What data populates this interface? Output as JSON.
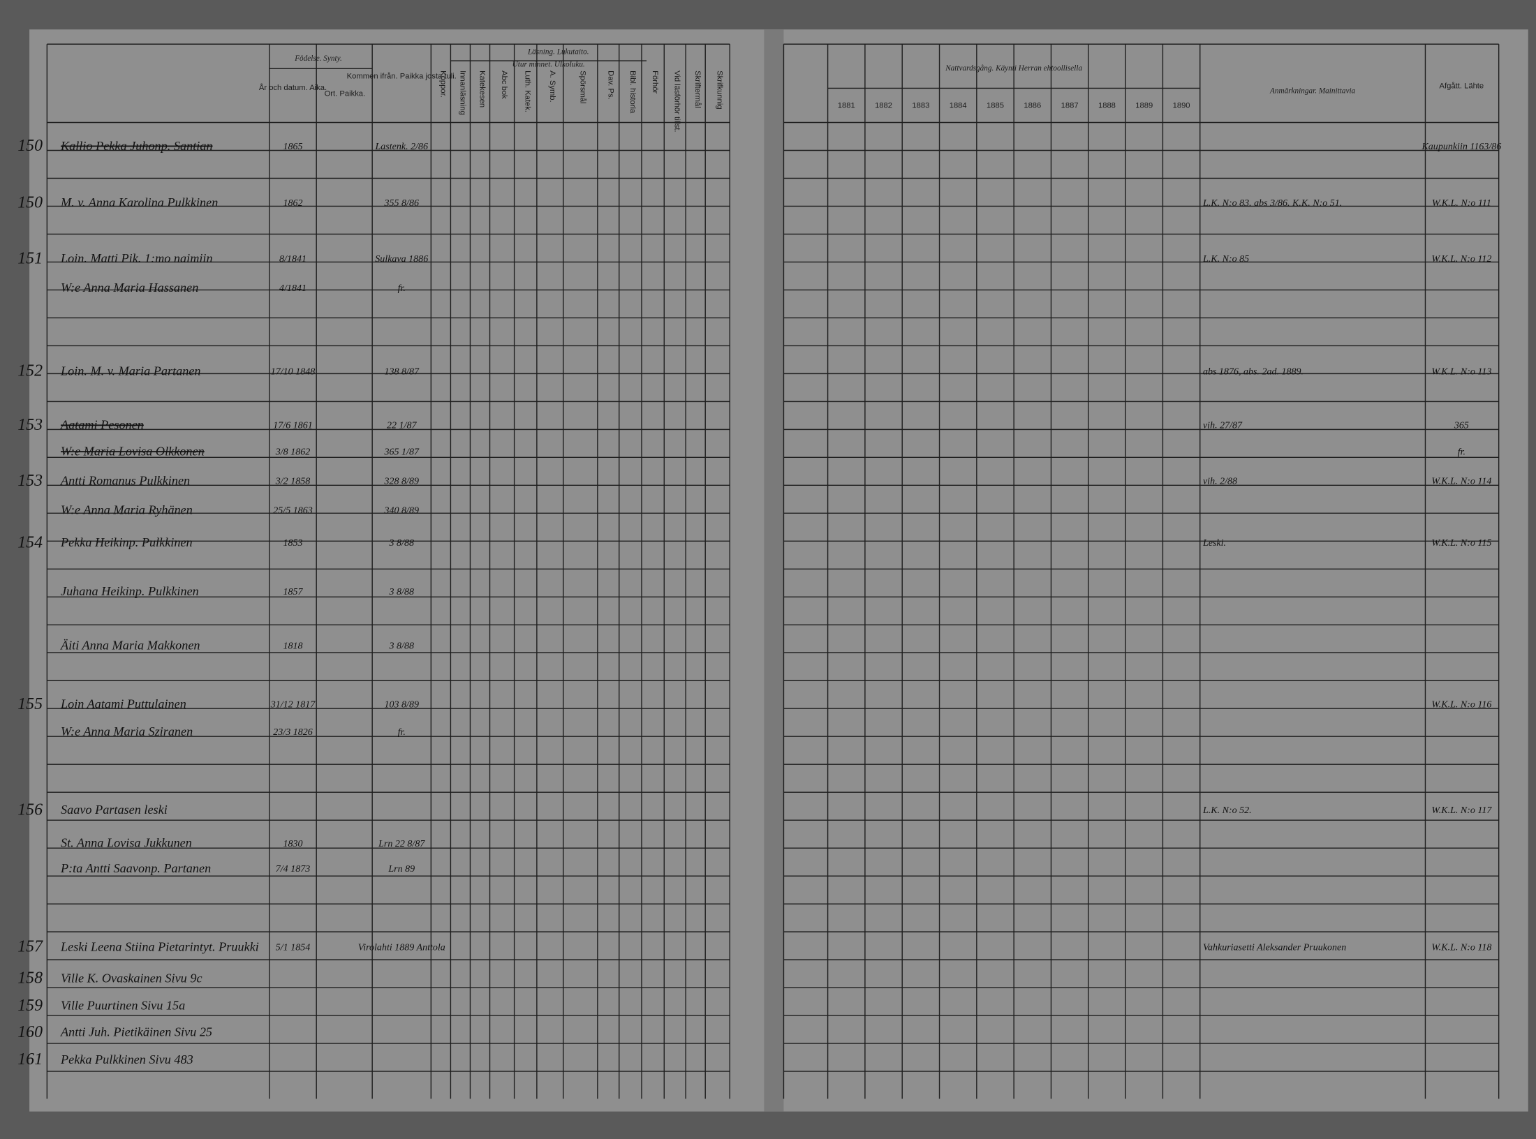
{
  "header": {
    "birth": "Födelse. Synty.",
    "birth_date": "År och datum. Aika.",
    "birth_place": "Ort. Paikka.",
    "came_from": "Kommen ifrån. Paikka josta tuli.",
    "reading": "Läsning. Lukutaito.",
    "by_heart": "Utur minnet. Ulkoluku.",
    "narrow_columns": [
      "Koppor.",
      "Innanläsning",
      "Katekesen",
      "Abc bok",
      "Luth. Katek.",
      "A. Symb.",
      "Spörsmål",
      "Dav. Ps.",
      "Bibl. historia",
      "Förhör",
      "Vid läsförhör tillst.",
      "Skriftermål",
      "Skrifkunnig"
    ],
    "communion": "Nattvardsgång. Käynti Herran ehtoollisella",
    "years": [
      "1881",
      "1882",
      "1883",
      "1884",
      "1885",
      "1886",
      "1887",
      "1888",
      "1889",
      "1890"
    ],
    "remarks": "Anmärkningar. Mainittavia",
    "departed": "Afgått. Lähte"
  },
  "rows": [
    {
      "num": "150",
      "name": "Kallio Pekka Juhonp. Santian",
      "born": "1865",
      "from": "Lastenk. 2/86",
      "note": "",
      "departed": "Kaupunkiin 1163/86",
      "struck": true
    },
    {
      "num": "150",
      "name": "M. v. Anna Karolina Pulkkinen",
      "born": "1862",
      "from": "355 8/86",
      "note": "L.K. N:o 83. abs 3/86. K.K. N:o 51.",
      "departed": "W.K.L. N:o 111",
      "struck": false
    },
    {
      "num": "151",
      "name": "Loin. Matti Pik. 1:mo naimiin",
      "born": "8/1841",
      "from": "Sulkava 1886",
      "note": "L.K. N:o 85",
      "departed": "W.K.L. N:o 112",
      "struck": false
    },
    {
      "num": "",
      "name": "W:e Anna Maria Hassanen",
      "born": "4/1841",
      "from": "fr.",
      "note": "",
      "departed": "",
      "struck": false
    },
    {
      "num": "152",
      "name": "Loin. M. v. Maria Partanen",
      "born": "17/10 1848",
      "from": "138 8/87",
      "note": "abs 1876, abs. 2ad. 1889.",
      "departed": "W.K.L. N:o 113",
      "struck": false
    },
    {
      "num": "153",
      "name": "Aatami Pesonen",
      "born": "17/6 1861",
      "from": "22 1/87",
      "note": "vih. 27/87",
      "departed": "365",
      "struck": true
    },
    {
      "num": "",
      "name": "W:e Maria Lovisa Olkkonen",
      "born": "3/8 1862",
      "from": "365 1/87",
      "note": "",
      "departed": "fr.",
      "struck": true
    },
    {
      "num": "153",
      "name": "Antti Romanus Pulkkinen",
      "born": "3/2 1858",
      "from": "328 8/89",
      "note": "vih. 2/88",
      "departed": "W.K.L. N:o 114",
      "struck": false
    },
    {
      "num": "",
      "name": "W:e Anna Maria Ryhänen",
      "born": "25/5 1863",
      "from": "340 8/89",
      "note": "",
      "departed": "",
      "struck": false
    },
    {
      "num": "154",
      "name": "Pekka Heikinp. Pulkkinen",
      "born": "1853",
      "from": "3 8/88",
      "note": "Leski.",
      "departed": "W.K.L. N:o 115",
      "struck": false
    },
    {
      "num": "",
      "name": "Juhana Heikinp. Pulkkinen",
      "born": "1857",
      "from": "3 8/88",
      "note": "",
      "departed": "",
      "struck": false
    },
    {
      "num": "",
      "name": "Äiti Anna Maria Makkonen",
      "born": "1818",
      "from": "3 8/88",
      "note": "",
      "departed": "",
      "struck": false
    },
    {
      "num": "155",
      "name": "Loin Aatami Puttulainen",
      "born": "31/12 1817",
      "from": "103 8/89",
      "note": "",
      "departed": "W.K.L. N:o 116",
      "struck": false
    },
    {
      "num": "",
      "name": "W:e Anna Maria Sziranen",
      "born": "23/3 1826",
      "from": "fr.",
      "note": "",
      "departed": "",
      "struck": false
    },
    {
      "num": "156",
      "name": "Saavo Partasen leski",
      "born": "",
      "from": "",
      "note": "L.K. N:o 52.",
      "departed": "W.K.L. N:o 117",
      "struck": false
    },
    {
      "num": "",
      "name": "St. Anna Lovisa Jukkunen",
      "born": "1830",
      "from": "Lrn 22 8/87",
      "note": "",
      "departed": "",
      "struck": false
    },
    {
      "num": "",
      "name": "P:ta Antti Saavonp. Partanen",
      "born": "7/4 1873",
      "from": "Lrn 89",
      "note": "",
      "departed": "",
      "struck": false
    },
    {
      "num": "157",
      "name": "Leski Leena Stiina Pietarintyt. Pruukki",
      "born": "5/1 1854",
      "from": "Virolahti 1889 Anttola",
      "note": "Vahkuriasetti Aleksander Pruukonen",
      "departed": "W.K.L. N:o 118",
      "struck": false
    },
    {
      "num": "158",
      "name": "Ville K. Ovaskainen Sivu 9c",
      "born": "",
      "from": "",
      "note": "",
      "departed": "",
      "struck": false
    },
    {
      "num": "159",
      "name": "Ville Puurtinen Sivu 15a",
      "born": "",
      "from": "",
      "note": "",
      "departed": "",
      "struck": false
    },
    {
      "num": "160",
      "name": "Antti Juh. Pietikäinen Sivu 25",
      "born": "",
      "from": "",
      "note": "",
      "departed": "",
      "struck": false
    },
    {
      "num": "161",
      "name": "Pekka Pulkkinen Sivu 483",
      "born": "",
      "from": "",
      "note": "",
      "departed": "",
      "struck": false
    }
  ]
}
